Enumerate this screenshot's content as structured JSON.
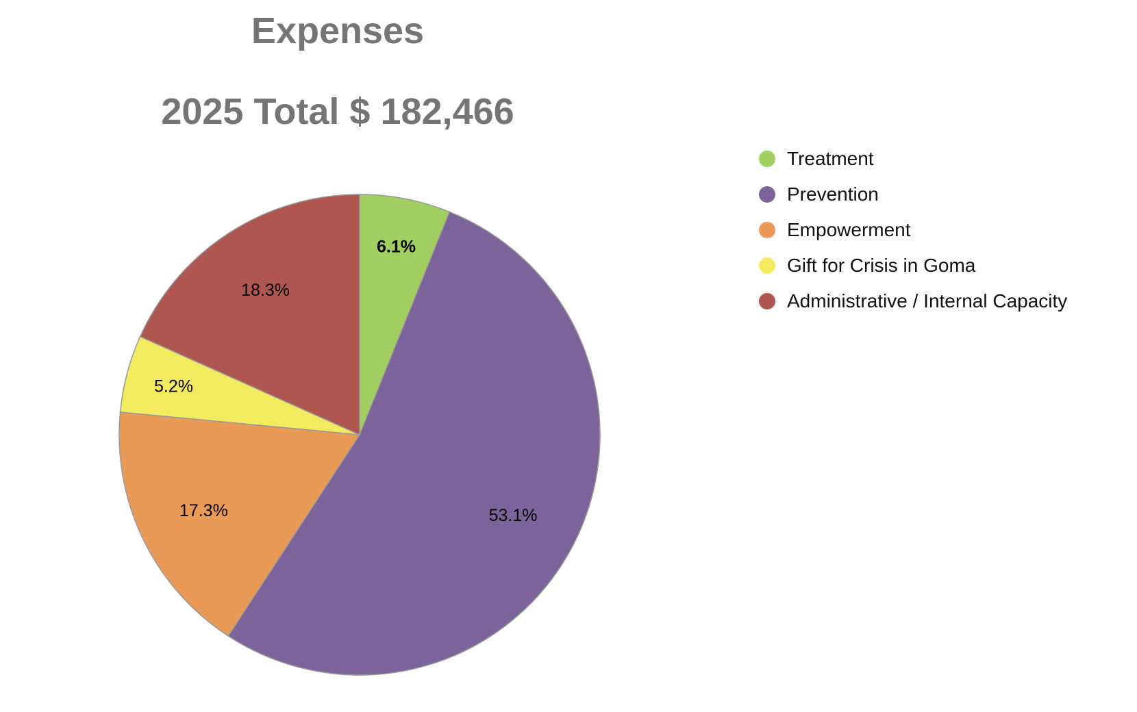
{
  "chart_data": {
    "type": "pie",
    "title": "Expenses",
    "subtitle": "2025 Total  $ 182,466",
    "categories": [
      "Treatment",
      "Prevention",
      "Empowerment",
      "Gift for Crisis in Goma",
      "Administrative / Internal Capacity"
    ],
    "values": [
      6.1,
      53.1,
      17.3,
      5.2,
      18.3
    ],
    "labels": [
      "6.1%",
      "53.1%",
      "17.3%",
      "5.2%",
      "18.3%"
    ],
    "colors": [
      "#a1cf62",
      "#7c649b",
      "#e99a56",
      "#f2ea5f",
      "#b05650"
    ],
    "legend_position": "right",
    "start_angle": "top",
    "direction": "clockwise"
  }
}
